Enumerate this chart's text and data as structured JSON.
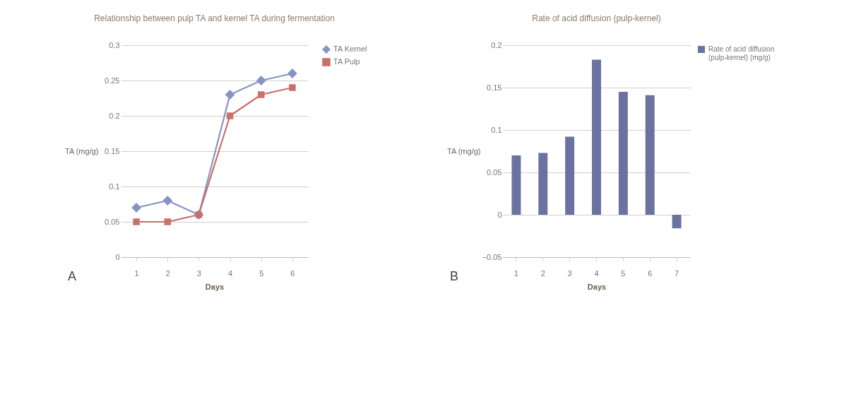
{
  "chart_data": [
    {
      "type": "line",
      "title": "Relationship between pulp TA and kernel TA during fermentation",
      "xlabel": "Days",
      "ylabel": "TA (mg/g)",
      "categories": [
        "1",
        "2",
        "3",
        "4",
        "5",
        "6"
      ],
      "series": [
        {
          "name": "TA Kernel",
          "color": "#8594c4",
          "marker": "diamond",
          "values": [
            0.07,
            0.08,
            0.06,
            0.23,
            0.25,
            0.26
          ]
        },
        {
          "name": "TA Pulp",
          "color": "#c8706a",
          "marker": "square",
          "values": [
            0.05,
            0.05,
            0.06,
            0.2,
            0.23,
            0.24
          ]
        }
      ],
      "ylim": [
        0,
        0.3
      ],
      "yticks": [
        0,
        0.05,
        0.1,
        0.15,
        0.2,
        0.25,
        0.3
      ],
      "grid": "y",
      "legend": "right",
      "annotations": [
        "A"
      ]
    },
    {
      "type": "bar",
      "title": "Rate of acid diffusion (pulp-kernel)",
      "xlabel": "Days",
      "ylabel": "TA (mg/g)",
      "categories": [
        "1",
        "2",
        "3",
        "4",
        "5",
        "6",
        "7"
      ],
      "series": [
        {
          "name": "Rate of acid diffusion (pulp-kernel) (mg/g)",
          "color": "#6a72a0",
          "values": [
            0.07,
            0.073,
            0.092,
            0.183,
            0.145,
            0.141,
            -0.016
          ]
        }
      ],
      "ylim": [
        -0.05,
        0.2
      ],
      "yticks": [
        -0.05,
        0,
        0.05,
        0.1,
        0.15,
        0.2
      ],
      "grid": "y",
      "legend": "right",
      "annotations": [
        "B"
      ]
    }
  ]
}
